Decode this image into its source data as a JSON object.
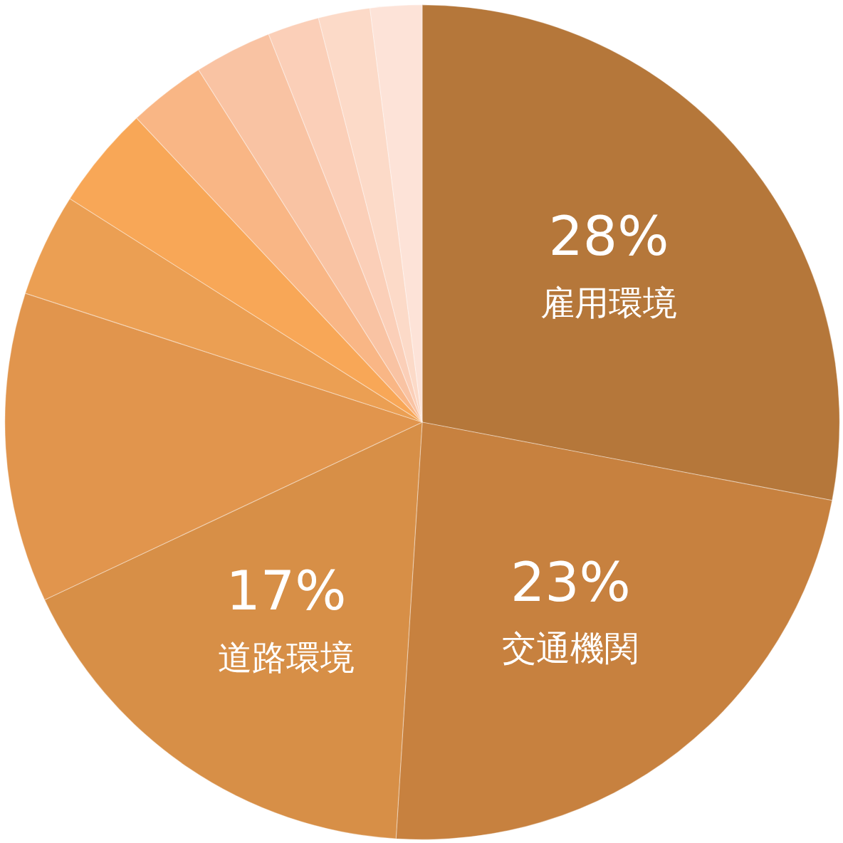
{
  "chart_data": {
    "type": "pie",
    "categories": [
      "雇用環境",
      "交通機関",
      "道路環境",
      null,
      null,
      null,
      null,
      null,
      null,
      null,
      null
    ],
    "values": [
      28,
      23,
      17,
      12,
      4,
      4,
      3,
      3,
      2,
      2,
      2
    ],
    "colors": [
      "#b5773a",
      "#c7813f",
      "#d78f47",
      "#e1954d",
      "#eb9f53",
      "#f8a757",
      "#f9b685",
      "#f9c3a3",
      "#fbcfb8",
      "#fcdac8",
      "#fde3d8"
    ],
    "value_labels": [
      "28%",
      "23%",
      "17%",
      null,
      null,
      null,
      null,
      null,
      null,
      null,
      null
    ]
  }
}
